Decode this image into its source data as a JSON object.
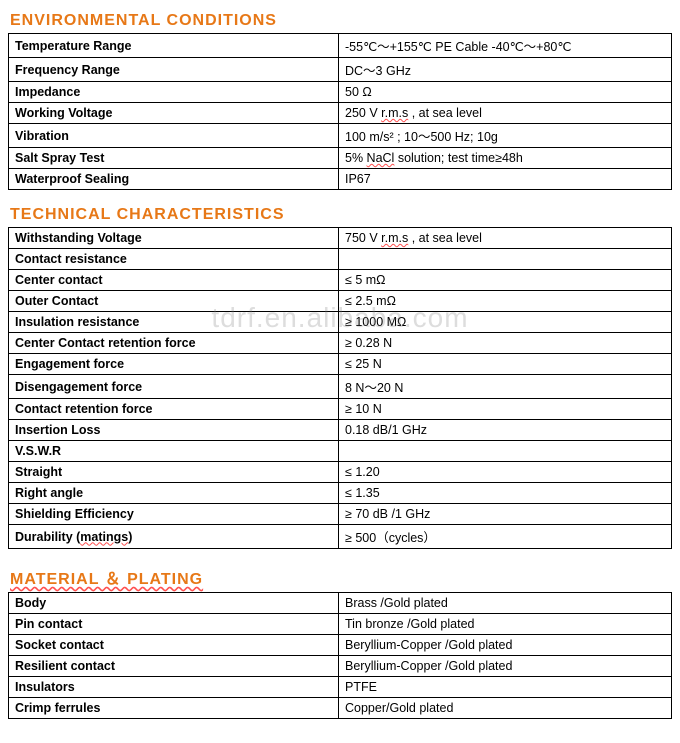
{
  "watermark_text": "tdrf.en.alibaba.com",
  "sections": {
    "env": {
      "title": "ENVIRONMENTAL    CONDITIONS",
      "rows": [
        {
          "label": "Temperature Range",
          "value": "-55℃～+155℃ PE Cable -40℃～+80℃"
        },
        {
          "label": "Frequency Range",
          "value": "DC～3 GHz"
        },
        {
          "label": "Impedance",
          "value": "50 Ω"
        },
        {
          "label": "Working Voltage",
          "value_html": "250 V        <span class='wavy'>r.m.s</span> , at sea level"
        },
        {
          "label": "Vibration",
          "value": "100 m/s² ; 10～500 Hz;    10g"
        },
        {
          "label": "Salt Spray Test",
          "value_html": "5% <span class='wavy'>NaCl</span> solution; test time≥48h"
        },
        {
          "label": "Waterproof Sealing",
          "value": "IP67"
        }
      ]
    },
    "tech": {
      "title": "TECHNICAL    CHARACTERISTICS",
      "rows": [
        {
          "label": "Withstanding Voltage",
          "value_html": "750 V        <span class='wavy'>r.m.s</span> , at sea level"
        },
        {
          "label": "Contact resistance",
          "value": ""
        },
        {
          "label": "Center contact",
          "value": "≤   5 mΩ"
        },
        {
          "label": "Outer Contact",
          "value": "≤ 2.5  mΩ"
        },
        {
          "label": "Insulation resistance",
          "value": "≥ 1000  MΩ"
        },
        {
          "label": "Center Contact retention force",
          "value": "≥ 0.28 N"
        },
        {
          "label": "Engagement force",
          "value": "≤ 25 N"
        },
        {
          "label": "Disengagement force",
          "value": "8 N～20 N"
        },
        {
          "label": "Contact retention force",
          "value": "≥ 10 N"
        },
        {
          "label": "Insertion Loss",
          "value": "0.18 dB/1 GHz"
        },
        {
          "label": "V.S.W.R",
          "value": ""
        },
        {
          "label": "Straight",
          "value": "≤ 1.20"
        },
        {
          "label": "Right angle",
          "value": "≤ 1.35"
        },
        {
          "label": "Shielding Efficiency",
          "value": "≥ 70 dB /1 GHz"
        },
        {
          "label_html": "Durability (<span class='wavy'>matings</span>)",
          "value": "≥ 500（cycles）"
        }
      ]
    },
    "mat": {
      "title": "MATERIAL ＆ PLATING",
      "rows": [
        {
          "label": "Body",
          "value": "Brass /Gold plated"
        },
        {
          "label": "Pin contact",
          "value": "Tin bronze /Gold plated"
        },
        {
          "label": "Socket contact",
          "value": "Beryllium-Copper /Gold plated"
        },
        {
          "label": "Resilient contact",
          "value": "Beryllium-Copper /Gold plated"
        },
        {
          "label": "Insulators",
          "value": "PTFE"
        },
        {
          "label": "Crimp ferrules",
          "value": "Copper/Gold plated"
        }
      ]
    }
  }
}
